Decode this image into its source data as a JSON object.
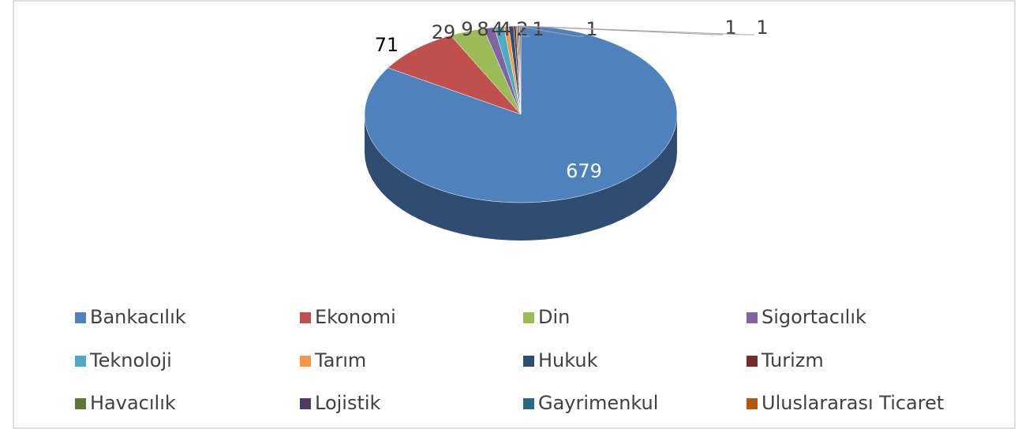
{
  "chart_data": {
    "type": "pie3d",
    "categories": [
      "Bankacılık",
      "Ekonomi",
      "Din",
      "Sigortacılık",
      "Teknoloji",
      "Tarım",
      "Hukuk",
      "Turizm",
      "Havacılık",
      "Lojistik",
      "Gayrimenkul",
      "Uluslararası Ticaret"
    ],
    "values": [
      679,
      71,
      29,
      9,
      8,
      4,
      4,
      2,
      1,
      1,
      1,
      1
    ],
    "colors": [
      "#4f81bd",
      "#c0504d",
      "#9bbb59",
      "#8064a2",
      "#4bacc6",
      "#f79646",
      "#2c4d75",
      "#772c2a",
      "#5f7530",
      "#4d3b62",
      "#276a7c",
      "#b65708"
    ],
    "legend": "bottom"
  }
}
